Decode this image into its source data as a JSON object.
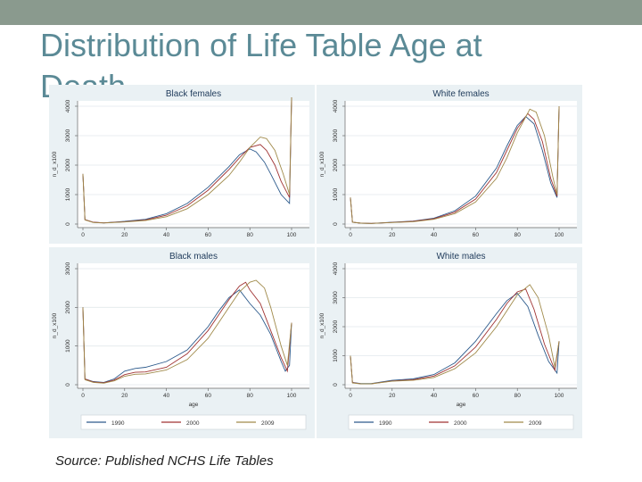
{
  "slide": {
    "title": "Distribution of Life Table Age at Death",
    "source": "Source: Published NCHS Life Tables"
  },
  "colors": {
    "1990": "#2d5b8c",
    "2000": "#a03333",
    "2009": "#a08a4a"
  },
  "chart_data": [
    {
      "type": "line",
      "title": "Black females",
      "xlabel": "",
      "ylabel": "n_d_x100",
      "xlim": [
        0,
        100
      ],
      "ylim": [
        0,
        4000
      ],
      "xticks": [
        "0",
        "20",
        "40",
        "60",
        "80",
        "100"
      ],
      "yticks": [
        "0",
        "1000",
        "2000",
        "3000",
        "4000"
      ],
      "series": [
        {
          "x": [
            0,
            1,
            5,
            10,
            20,
            30,
            40,
            50,
            60,
            70,
            75,
            80,
            83,
            87,
            90,
            95,
            99,
            100
          ],
          "y": [
            1700,
            150,
            60,
            40,
            90,
            160,
            350,
            700,
            1250,
            1950,
            2350,
            2550,
            2450,
            2100,
            1700,
            1000,
            700,
            4300
          ]
        },
        {
          "x": [
            0,
            1,
            5,
            10,
            20,
            30,
            40,
            50,
            60,
            70,
            75,
            80,
            85,
            88,
            92,
            95,
            99,
            100
          ],
          "y": [
            1700,
            150,
            60,
            40,
            80,
            140,
            300,
            620,
            1150,
            1850,
            2250,
            2600,
            2700,
            2500,
            2000,
            1450,
            900,
            4300
          ]
        },
        {
          "x": [
            0,
            1,
            5,
            10,
            20,
            30,
            40,
            50,
            60,
            70,
            75,
            80,
            85,
            88,
            92,
            96,
            99,
            100
          ],
          "y": [
            1700,
            140,
            50,
            35,
            70,
            120,
            250,
            520,
            1000,
            1650,
            2100,
            2600,
            2950,
            2900,
            2500,
            1700,
            1000,
            4300
          ]
        }
      ]
    },
    {
      "type": "line",
      "title": "White females",
      "xlabel": "",
      "ylabel": "n_d_x100",
      "xlim": [
        0,
        100
      ],
      "ylim": [
        0,
        4000
      ],
      "xticks": [
        "0",
        "20",
        "40",
        "60",
        "80",
        "100"
      ],
      "yticks": [
        "0",
        "1000",
        "2000",
        "3000",
        "4000"
      ],
      "series": [
        {
          "x": [
            0,
            1,
            5,
            10,
            20,
            30,
            40,
            50,
            60,
            70,
            75,
            80,
            84,
            88,
            92,
            96,
            99,
            100
          ],
          "y": [
            900,
            60,
            30,
            20,
            60,
            100,
            200,
            450,
            950,
            1900,
            2650,
            3350,
            3650,
            3400,
            2500,
            1400,
            900,
            4000
          ]
        },
        {
          "x": [
            0,
            1,
            5,
            10,
            20,
            30,
            40,
            50,
            60,
            70,
            75,
            80,
            85,
            88,
            92,
            96,
            99,
            100
          ],
          "y": [
            900,
            60,
            30,
            20,
            55,
            90,
            180,
            400,
            850,
            1750,
            2500,
            3250,
            3750,
            3550,
            2800,
            1550,
            950,
            4000
          ]
        },
        {
          "x": [
            0,
            1,
            5,
            10,
            20,
            30,
            40,
            50,
            60,
            70,
            75,
            80,
            86,
            89,
            93,
            97,
            99,
            100
          ],
          "y": [
            900,
            60,
            30,
            20,
            50,
            80,
            160,
            350,
            750,
            1550,
            2250,
            3100,
            3900,
            3800,
            3000,
            1600,
            1000,
            4000
          ]
        }
      ]
    },
    {
      "type": "line",
      "title": "Black males",
      "xlabel": "age",
      "ylabel": "n_d_x100",
      "xlim": [
        0,
        100
      ],
      "ylim": [
        0,
        3000
      ],
      "xticks": [
        "0",
        "20",
        "40",
        "60",
        "80",
        "100"
      ],
      "yticks": [
        "0",
        "1000",
        "2000",
        "3000"
      ],
      "legend": [
        "1990",
        "2000",
        "2009"
      ],
      "series": [
        {
          "name": "1990",
          "x": [
            0,
            1,
            5,
            10,
            15,
            20,
            25,
            30,
            40,
            50,
            60,
            65,
            70,
            75,
            80,
            85,
            90,
            95,
            97,
            99,
            100
          ],
          "y": [
            2000,
            150,
            80,
            60,
            150,
            350,
            420,
            450,
            600,
            900,
            1500,
            1900,
            2250,
            2450,
            2100,
            1800,
            1300,
            600,
            350,
            500,
            1600
          ]
        },
        {
          "name": "2000",
          "x": [
            0,
            1,
            5,
            10,
            15,
            20,
            25,
            30,
            40,
            50,
            60,
            65,
            70,
            75,
            78,
            80,
            85,
            90,
            95,
            98,
            100
          ],
          "y": [
            2000,
            150,
            70,
            50,
            120,
            260,
            320,
            330,
            450,
            800,
            1400,
            1800,
            2200,
            2550,
            2650,
            2450,
            2100,
            1400,
            700,
            350,
            1600
          ]
        },
        {
          "name": "2009",
          "x": [
            0,
            1,
            5,
            10,
            15,
            20,
            25,
            30,
            40,
            50,
            60,
            65,
            70,
            75,
            80,
            83,
            87,
            90,
            95,
            98,
            100
          ],
          "y": [
            2000,
            130,
            60,
            40,
            100,
            220,
            270,
            280,
            380,
            650,
            1200,
            1600,
            2000,
            2400,
            2650,
            2700,
            2500,
            2000,
            1000,
            500,
            1600
          ]
        }
      ]
    },
    {
      "type": "line",
      "title": "White males",
      "xlabel": "age",
      "ylabel": "n_d_x100",
      "xlim": [
        0,
        100
      ],
      "ylim": [
        0,
        4000
      ],
      "xticks": [
        "0",
        "20",
        "40",
        "60",
        "80",
        "100"
      ],
      "yticks": [
        "0",
        "1000",
        "2000",
        "3000",
        "4000"
      ],
      "legend": [
        "1990",
        "2000",
        "2009"
      ],
      "series": [
        {
          "name": "1990",
          "x": [
            0,
            1,
            5,
            10,
            20,
            30,
            40,
            50,
            60,
            70,
            75,
            80,
            85,
            90,
            95,
            99,
            100
          ],
          "y": [
            1000,
            80,
            40,
            40,
            150,
            200,
            350,
            750,
            1500,
            2450,
            2900,
            3150,
            2700,
            1700,
            800,
            400,
            1500
          ]
        },
        {
          "name": "2000",
          "x": [
            0,
            1,
            5,
            10,
            20,
            30,
            40,
            50,
            60,
            70,
            75,
            80,
            84,
            88,
            93,
            98,
            100
          ],
          "y": [
            1000,
            70,
            35,
            35,
            130,
            170,
            300,
            650,
            1300,
            2250,
            2800,
            3200,
            3300,
            2600,
            1400,
            500,
            1500
          ]
        },
        {
          "name": "2009",
          "x": [
            0,
            1,
            5,
            10,
            20,
            30,
            40,
            50,
            60,
            70,
            75,
            80,
            86,
            90,
            95,
            98,
            100
          ],
          "y": [
            1000,
            60,
            30,
            30,
            120,
            150,
            250,
            550,
            1100,
            2000,
            2550,
            3100,
            3450,
            3000,
            1700,
            600,
            1500
          ]
        }
      ]
    }
  ]
}
